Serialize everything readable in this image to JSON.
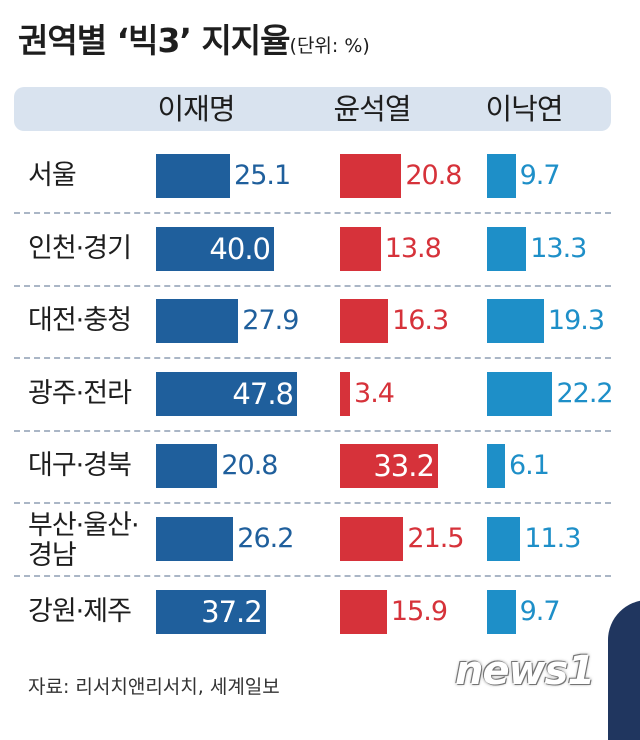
{
  "chart_data": {
    "type": "bar",
    "title": "권역별 ‘빅3’ 지지율",
    "unit": "(단위: %)",
    "categories": [
      "서울",
      "인천·경기",
      "대전·충청",
      "광주·전라",
      "대구·경북",
      "부산·울산·경남",
      "강원·제주"
    ],
    "series": [
      {
        "name": "이재명",
        "color": "#1f5f9c",
        "values": [
          25.1,
          40.0,
          27.9,
          47.8,
          20.8,
          26.2,
          37.2
        ]
      },
      {
        "name": "윤석열",
        "color": "#d6323a",
        "values": [
          20.8,
          13.8,
          16.3,
          3.4,
          33.2,
          21.5,
          15.9
        ]
      },
      {
        "name": "이낙연",
        "color": "#1e8fc8",
        "values": [
          9.7,
          13.3,
          19.3,
          22.2,
          6.1,
          11.3,
          9.7
        ]
      }
    ],
    "value_labels": [
      [
        "25.1",
        "40.0",
        "27.9",
        "47.8",
        "20.8",
        "26.2",
        "37.2"
      ],
      [
        "20.8",
        "13.8",
        "16.3",
        "3.4",
        "33.2",
        "21.5",
        "15.9"
      ],
      [
        "9.7",
        "13.3",
        "19.3",
        "22.2",
        "6.1",
        "11.3",
        "9.7"
      ]
    ],
    "inside_labels": [
      [
        false,
        true,
        false,
        true,
        false,
        false,
        true
      ],
      [
        false,
        false,
        false,
        false,
        true,
        false,
        false
      ],
      [
        false,
        false,
        false,
        false,
        false,
        false,
        false
      ]
    ]
  },
  "source": "자료: 리서치앤리서치, 세계일보",
  "logo_text": "news1"
}
